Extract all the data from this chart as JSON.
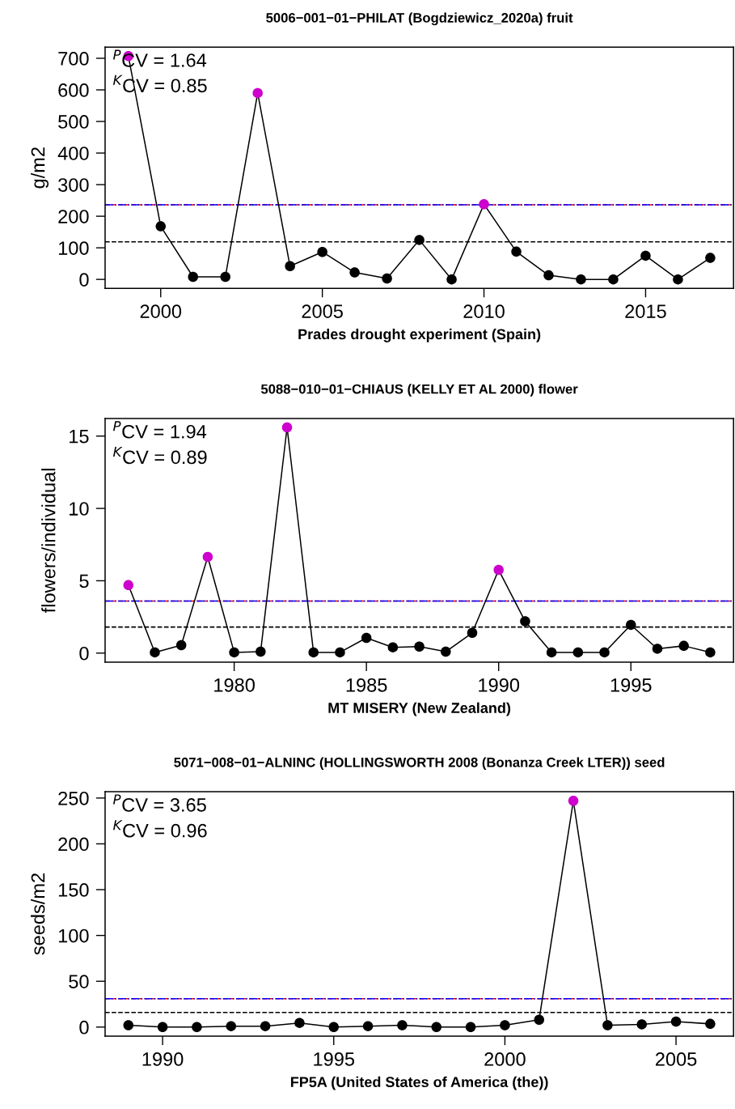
{
  "chart_data": [
    {
      "type": "line",
      "title": "5006−001−01−PHILAT (Bogdziewicz_2020a) fruit",
      "xlabel": "Prades drought experiment (Spain)",
      "ylabel": "g/m2",
      "x": [
        1999,
        2000,
        2001,
        2002,
        2003,
        2004,
        2005,
        2006,
        2007,
        2008,
        2009,
        2010,
        2011,
        2012,
        2013,
        2014,
        2015,
        2016,
        2017
      ],
      "series": [
        {
          "color": "#000000",
          "colors": [
            "#cd00cd",
            "#000000",
            "#000000",
            "#000000",
            "#cd00cd",
            "#000000",
            "#000000",
            "#000000",
            "#000000",
            "#000000",
            "#000000",
            "#cd00cd",
            "#000000",
            "#000000",
            "#000000",
            "#000000",
            "#000000",
            "#000000",
            "#000000"
          ],
          "values": [
            707,
            168,
            8,
            8,
            590,
            42,
            87,
            22,
            3,
            125,
            0,
            238,
            88,
            13,
            0,
            0,
            75,
            0,
            68
          ]
        }
      ],
      "marker": "circle",
      "line_style": "solid",
      "grid": false,
      "xlim": [
        1998.28,
        2017.72
      ],
      "xticks": [
        2000,
        2005,
        2010,
        2015
      ],
      "ylim": [
        -28.3,
        735.3
      ],
      "yticks": [
        0,
        100,
        200,
        300,
        400,
        500,
        600,
        700
      ],
      "ref_lines": [
        {
          "axis": "y",
          "value": 119,
          "color": "#000000",
          "line_style": "dashed"
        },
        {
          "axis": "y",
          "value": 236,
          "color": "#ff0000",
          "line_style": "dashed"
        },
        {
          "axis": "y",
          "value": 236,
          "color": "#0000ff",
          "line_style": "dashdot"
        }
      ],
      "annotations": [
        "$^{P}$CV = 1.64",
        "$^{K}$CV = 0.85"
      ]
    },
    {
      "type": "line",
      "title": "5088−010−01−CHIAUS (KELLY ET AL 2000) flower",
      "xlabel": "MT MISERY (New Zealand)",
      "ylabel": "flowers/individual",
      "x": [
        1976,
        1977,
        1978,
        1979,
        1980,
        1981,
        1982,
        1983,
        1984,
        1985,
        1986,
        1987,
        1988,
        1989,
        1990,
        1991,
        1992,
        1993,
        1994,
        1995,
        1996,
        1997,
        1998
      ],
      "series": [
        {
          "color": "#000000",
          "colors": [
            "#cd00cd",
            "#000000",
            "#000000",
            "#cd00cd",
            "#000000",
            "#000000",
            "#cd00cd",
            "#000000",
            "#000000",
            "#000000",
            "#000000",
            "#000000",
            "#000000",
            "#000000",
            "#cd00cd",
            "#000000",
            "#000000",
            "#000000",
            "#000000",
            "#000000",
            "#000000",
            "#000000",
            "#000000"
          ],
          "values": [
            4.7,
            0.05,
            0.55,
            6.65,
            0.05,
            0.1,
            15.6,
            0.05,
            0.05,
            1.05,
            0.4,
            0.45,
            0.1,
            1.4,
            5.75,
            2.2,
            0.05,
            0.05,
            0.05,
            1.95,
            0.3,
            0.5,
            0.05
          ]
        }
      ],
      "marker": "circle",
      "line_style": "solid",
      "grid": false,
      "xlim": [
        1975.12,
        1998.88
      ],
      "xticks": [
        1980,
        1985,
        1990,
        1995
      ],
      "ylim": [
        -0.62,
        16.22
      ],
      "yticks": [
        0,
        5,
        10,
        15
      ],
      "ref_lines": [
        {
          "axis": "y",
          "value": 1.8,
          "color": "#000000",
          "line_style": "dashed"
        },
        {
          "axis": "y",
          "value": 3.6,
          "color": "#ff0000",
          "line_style": "dashed"
        },
        {
          "axis": "y",
          "value": 3.6,
          "color": "#0000ff",
          "line_style": "dashdot"
        }
      ],
      "annotations": [
        "$^{P}$CV = 1.94",
        "$^{K}$CV = 0.89"
      ]
    },
    {
      "type": "line",
      "title": "5071−008−01−ALNINC (HOLLINGSWORTH 2008 (Bonanza Creek LTER)) seed",
      "xlabel": "FP5A (United States of America (the))",
      "ylabel": "seeds/m2",
      "x": [
        1989,
        1990,
        1991,
        1992,
        1993,
        1994,
        1995,
        1996,
        1997,
        1998,
        1999,
        2000,
        2001,
        2002,
        2003,
        2004,
        2005,
        2006
      ],
      "series": [
        {
          "color": "#000000",
          "colors": [
            "#000000",
            "#000000",
            "#000000",
            "#000000",
            "#000000",
            "#000000",
            "#000000",
            "#000000",
            "#000000",
            "#000000",
            "#000000",
            "#000000",
            "#000000",
            "#cd00cd",
            "#000000",
            "#000000",
            "#000000",
            "#000000"
          ],
          "values": [
            2,
            0,
            0,
            1,
            1,
            4.5,
            0,
            1,
            2,
            0,
            0,
            2,
            8,
            247,
            2,
            3,
            6,
            3.5
          ]
        }
      ],
      "marker": "circle",
      "line_style": "solid",
      "grid": false,
      "xlim": [
        1988.32,
        2006.68
      ],
      "xticks": [
        1990,
        1995,
        2000,
        2005
      ],
      "ylim": [
        -9.9,
        256.9
      ],
      "yticks": [
        0,
        50,
        100,
        150,
        200,
        250
      ],
      "ref_lines": [
        {
          "axis": "y",
          "value": 16,
          "color": "#000000",
          "line_style": "dashed"
        },
        {
          "axis": "y",
          "value": 31,
          "color": "#ff0000",
          "line_style": "dashed"
        },
        {
          "axis": "y",
          "value": 31,
          "color": "#0000ff",
          "line_style": "dashdot"
        }
      ],
      "annotations": [
        "$^{P}$CV = 3.65",
        "$^{K}$CV = 0.96"
      ]
    }
  ]
}
